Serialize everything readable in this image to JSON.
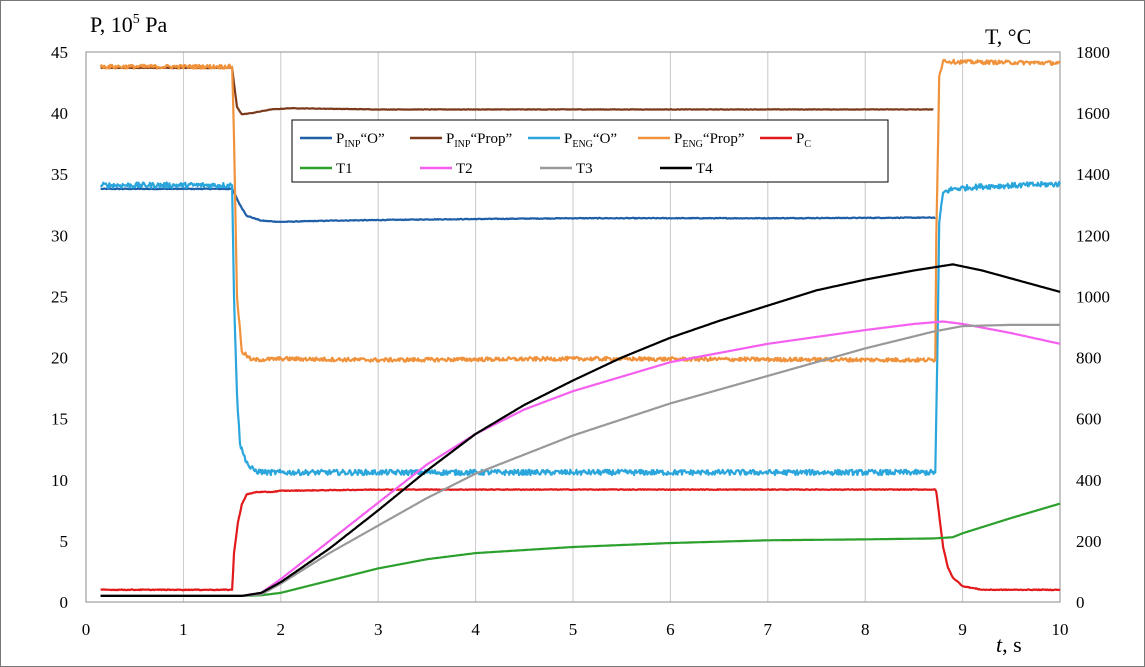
{
  "chart_data": {
    "type": "line",
    "title": "",
    "xlabel": "t, s",
    "xlabel_parts": {
      "var": "t",
      "unit": ", s"
    },
    "ylabel_left": "P, 10^5 Pa",
    "ylabel_left_parts": {
      "base": "P, 10",
      "sup": "5",
      "unit": " Pa"
    },
    "ylabel_right": "T, °C",
    "xlim": [
      0,
      10
    ],
    "ylim_left": [
      0,
      45
    ],
    "ylim_right": [
      0,
      1800
    ],
    "xticks": [
      0,
      1,
      2,
      3,
      4,
      5,
      6,
      7,
      8,
      9,
      10
    ],
    "yticks_left": [
      0,
      5,
      10,
      15,
      20,
      25,
      30,
      35,
      40,
      45
    ],
    "yticks_right": [
      0,
      200,
      400,
      600,
      800,
      1000,
      1200,
      1400,
      1600,
      1800
    ],
    "grid": "vertical",
    "legend_position": "top-center",
    "series": [
      {
        "name": "PINP“O”",
        "legend": {
          "base": "P",
          "sub": "INP",
          "rest": "“O”"
        },
        "axis": "left",
        "color": "#1f5fa8",
        "noise": 0.03,
        "x": [
          0.15,
          1.5,
          1.52,
          1.58,
          1.65,
          1.8,
          2.0,
          2.5,
          3.5,
          5,
          7,
          8.72,
          8.72
        ],
        "y": [
          33.8,
          33.8,
          33.5,
          32.5,
          31.6,
          31.2,
          31.1,
          31.2,
          31.3,
          31.4,
          31.4,
          31.45,
          31.45
        ]
      },
      {
        "name": "PINP“Prop”",
        "legend": {
          "base": "P",
          "sub": "INP",
          "rest": "“Prop”"
        },
        "axis": "left",
        "color": "#7b3a1c",
        "noise": 0.02,
        "x": [
          0.15,
          1.5,
          1.55,
          1.6,
          1.7,
          1.9,
          2.1,
          3,
          5,
          8.7
        ],
        "y": [
          43.7,
          43.7,
          40.5,
          39.9,
          40.0,
          40.3,
          40.4,
          40.3,
          40.3,
          40.3
        ]
      },
      {
        "name": "PENG“O”",
        "legend": {
          "base": "P",
          "sub": "ENG",
          "rest": "“O”"
        },
        "axis": "left",
        "color": "#2aa6dc",
        "noise": 0.22,
        "x": [
          0.15,
          1.5,
          1.52,
          1.55,
          1.58,
          1.62,
          1.68,
          1.75,
          1.85,
          2.0,
          3,
          5,
          8.72,
          8.74,
          8.76,
          8.8,
          8.9,
          9.2,
          10.0
        ],
        "y": [
          34.1,
          34.1,
          25,
          17,
          13,
          12,
          11,
          10.7,
          10.6,
          10.6,
          10.6,
          10.6,
          10.6,
          20,
          31,
          33.5,
          33.8,
          34.0,
          34.2
        ]
      },
      {
        "name": "PENG“Prop”",
        "legend": {
          "base": "P",
          "sub": "ENG",
          "rest": "“Prop”"
        },
        "axis": "left",
        "color": "#f0923b",
        "noise": 0.16,
        "x": [
          0.15,
          1.5,
          1.52,
          1.55,
          1.6,
          1.7,
          2.0,
          3,
          5,
          8.72,
          8.73,
          8.76,
          8.8,
          8.9,
          10.0
        ],
        "y": [
          43.8,
          43.8,
          38,
          25,
          20.5,
          19.8,
          19.9,
          19.8,
          19.9,
          19.8,
          30,
          43,
          44.3,
          44.2,
          44.1
        ]
      },
      {
        "name": "PC",
        "legend": {
          "base": "P",
          "sub": "C",
          "rest": ""
        },
        "axis": "left",
        "color": "#e31a1c",
        "noise": 0.03,
        "x": [
          0.15,
          1.5,
          1.52,
          1.56,
          1.6,
          1.65,
          1.75,
          1.9,
          2.0,
          3,
          5,
          8.72,
          8.73,
          8.8,
          8.85,
          8.9,
          9.0,
          9.2,
          10.0
        ],
        "y": [
          1.0,
          1.0,
          4.0,
          6.5,
          8.0,
          8.8,
          9.0,
          9.0,
          9.1,
          9.2,
          9.2,
          9.2,
          9.0,
          4.5,
          2.8,
          2.0,
          1.3,
          1.0,
          1.0
        ]
      },
      {
        "name": "T1",
        "legend": {
          "base": "T1",
          "sub": "",
          "rest": ""
        },
        "axis": "right",
        "color": "#2ca02c",
        "noise": 0,
        "x": [
          0.15,
          1.6,
          1.8,
          2.0,
          2.5,
          3.0,
          3.5,
          4.0,
          5.0,
          6.0,
          7.0,
          8.0,
          8.7,
          8.9,
          9.0,
          9.5,
          10.0
        ],
        "y": [
          20,
          20,
          22,
          30,
          70,
          110,
          140,
          160,
          180,
          193,
          202,
          205,
          208,
          212,
          225,
          275,
          322
        ]
      },
      {
        "name": "T2",
        "legend": {
          "base": "T2",
          "sub": "",
          "rest": ""
        },
        "axis": "right",
        "color": "#f55ff0",
        "noise": 0,
        "x": [
          0.15,
          1.6,
          1.8,
          2.0,
          2.5,
          3.0,
          3.5,
          4.0,
          4.5,
          5.0,
          6.0,
          7.0,
          8.0,
          8.5,
          8.8,
          9.0,
          9.5,
          10.0
        ],
        "y": [
          20,
          20,
          30,
          75,
          200,
          325,
          450,
          550,
          630,
          690,
          785,
          845,
          890,
          910,
          918,
          910,
          880,
          845
        ]
      },
      {
        "name": "T3",
        "legend": {
          "base": "T3",
          "sub": "",
          "rest": ""
        },
        "axis": "right",
        "color": "#999999",
        "noise": 0,
        "x": [
          0.15,
          1.6,
          1.8,
          2.0,
          2.5,
          3.0,
          3.5,
          4.0,
          5.0,
          6.0,
          7.0,
          8.0,
          8.7,
          9.0,
          9.5,
          10.0
        ],
        "y": [
          20,
          20,
          25,
          60,
          160,
          250,
          340,
          420,
          545,
          650,
          740,
          830,
          885,
          903,
          907,
          907
        ]
      },
      {
        "name": "T4",
        "legend": {
          "base": "T4",
          "sub": "",
          "rest": ""
        },
        "axis": "right",
        "color": "#000000",
        "noise": 0,
        "x": [
          0.15,
          1.6,
          1.8,
          2.0,
          2.5,
          3.0,
          3.5,
          4.0,
          4.5,
          5.0,
          5.5,
          6.0,
          6.5,
          7.0,
          7.5,
          8.0,
          8.5,
          8.9,
          9.2,
          9.6,
          10.0
        ],
        "y": [
          20,
          20,
          30,
          65,
          175,
          300,
          430,
          550,
          645,
          725,
          800,
          865,
          920,
          970,
          1020,
          1055,
          1085,
          1105,
          1085,
          1050,
          1015
        ]
      }
    ]
  }
}
